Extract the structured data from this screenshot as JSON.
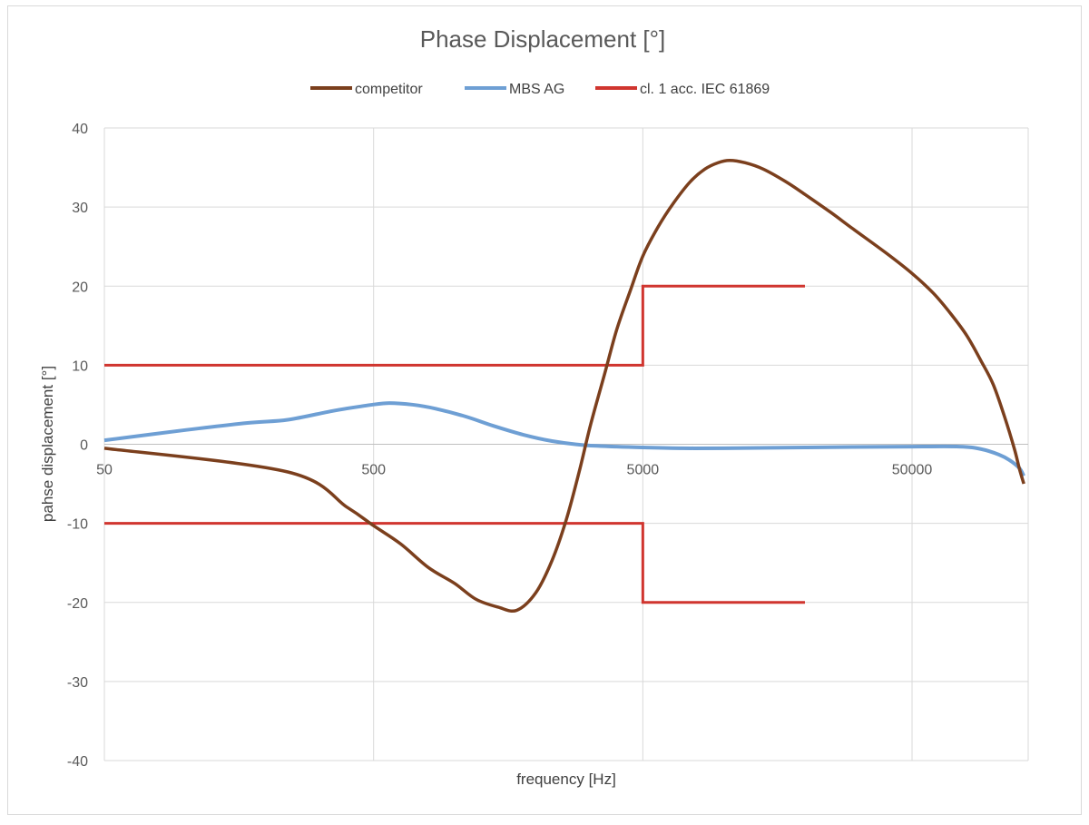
{
  "chart_data": {
    "type": "line",
    "title": "Phase Displacement [°]",
    "xlabel": "frequency [Hz]",
    "ylabel": "pahse displacement [°]",
    "x_scale": "log",
    "xlim": [
      50,
      135000
    ],
    "ylim": [
      -40,
      40
    ],
    "x_ticks": [
      50,
      500,
      5000,
      50000
    ],
    "x_tick_labels": [
      "50",
      "500",
      "5000",
      "50000"
    ],
    "y_ticks": [
      -40,
      -30,
      -20,
      -10,
      0,
      10,
      20,
      30,
      40
    ],
    "y_tick_labels": [
      "-40",
      "-30",
      "-20",
      "-10",
      "0",
      "10",
      "20",
      "30",
      "40"
    ],
    "grid": true,
    "legend_position": "top",
    "series": [
      {
        "name": "competitor",
        "color": "#7b3f1d",
        "points": [
          [
            50,
            -0.5
          ],
          [
            240,
            -3.5
          ],
          [
            400,
            -8.0
          ],
          [
            500,
            -10.3
          ],
          [
            630,
            -12.6
          ],
          [
            800,
            -15.6
          ],
          [
            1000,
            -17.6
          ],
          [
            1200,
            -19.6
          ],
          [
            1450,
            -20.6
          ],
          [
            1700,
            -21.0
          ],
          [
            2000,
            -18.8
          ],
          [
            2300,
            -14.7
          ],
          [
            2600,
            -9.5
          ],
          [
            2900,
            -3.5
          ],
          [
            3200,
            2.5
          ],
          [
            3600,
            8.8
          ],
          [
            4000,
            14.5
          ],
          [
            4500,
            19.5
          ],
          [
            5000,
            23.8
          ],
          [
            5700,
            27.5
          ],
          [
            6500,
            30.5
          ],
          [
            7500,
            33.2
          ],
          [
            8500,
            34.8
          ],
          [
            9500,
            35.6
          ],
          [
            10500,
            35.9
          ],
          [
            12000,
            35.6
          ],
          [
            14000,
            34.8
          ],
          [
            17000,
            33.2
          ],
          [
            20000,
            31.6
          ],
          [
            25000,
            29.3
          ],
          [
            30000,
            27.3
          ],
          [
            40000,
            24.2
          ],
          [
            50000,
            21.6
          ],
          [
            60000,
            19.1
          ],
          [
            70000,
            16.4
          ],
          [
            80000,
            13.7
          ],
          [
            90000,
            10.6
          ],
          [
            100000,
            7.6
          ],
          [
            110000,
            3.6
          ],
          [
            120000,
            -0.6
          ],
          [
            125000,
            -3.0
          ],
          [
            130000,
            -5.0
          ]
        ]
      },
      {
        "name": "MBS AG",
        "color": "#6e9fd4",
        "points": [
          [
            50,
            0.5
          ],
          [
            100,
            1.8
          ],
          [
            170,
            2.7
          ],
          [
            240,
            3.1
          ],
          [
            350,
            4.2
          ],
          [
            450,
            4.8
          ],
          [
            560,
            5.2
          ],
          [
            700,
            5.0
          ],
          [
            850,
            4.5
          ],
          [
            1100,
            3.5
          ],
          [
            1400,
            2.3
          ],
          [
            1800,
            1.2
          ],
          [
            2300,
            0.4
          ],
          [
            3000,
            -0.1
          ],
          [
            4000,
            -0.3
          ],
          [
            5000,
            -0.4
          ],
          [
            7000,
            -0.5
          ],
          [
            10000,
            -0.5
          ],
          [
            20000,
            -0.4
          ],
          [
            50000,
            -0.3
          ],
          [
            75000,
            -0.3
          ],
          [
            90000,
            -0.6
          ],
          [
            105000,
            -1.3
          ],
          [
            115000,
            -2.0
          ],
          [
            125000,
            -3.0
          ],
          [
            130000,
            -4.0
          ]
        ]
      },
      {
        "name": "cl. 1 acc. IEC 61869",
        "color": "#d0352f",
        "segments": [
          [
            [
              50,
              10
            ],
            [
              5000,
              10
            ],
            [
              5000,
              20
            ],
            [
              20000,
              20
            ]
          ],
          [
            [
              50,
              -10
            ],
            [
              5000,
              -10
            ],
            [
              5000,
              -20
            ],
            [
              20000,
              -20
            ]
          ]
        ]
      }
    ]
  }
}
